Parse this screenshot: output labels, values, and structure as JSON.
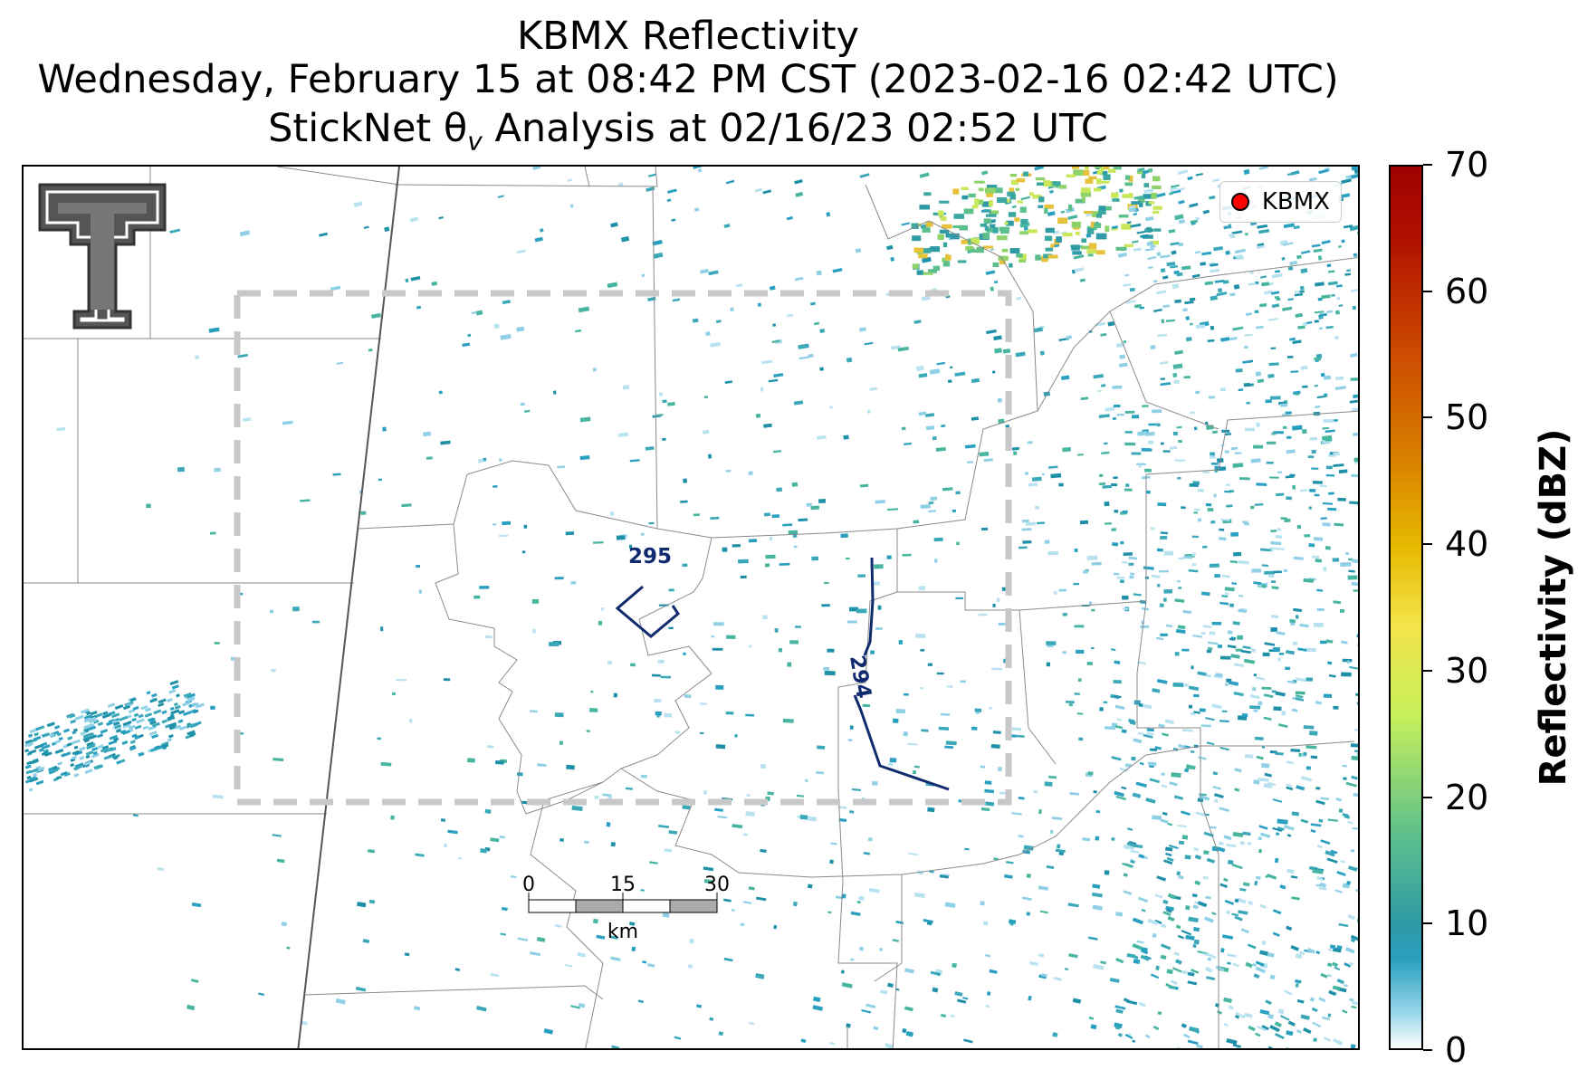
{
  "header": {
    "title_line1": "KBMX Reflectivity",
    "title_line2": "Wednesday, February 15 at 08:42 PM CST (2023-02-16 02:42 UTC)",
    "title_line3_prefix": "StickNet θ",
    "title_line3_subscript": "v",
    "title_line3_suffix": " Analysis at 02/16/23 02:52 UTC"
  },
  "legend": {
    "label": "KBMX",
    "marker_color": "#ff0000"
  },
  "contours": [
    {
      "label": "295",
      "color": "#102a6e"
    },
    {
      "label": "294",
      "color": "#102a6e"
    }
  ],
  "scale_bar": {
    "ticks": [
      "0",
      "15",
      "30"
    ],
    "mid_tick": "15",
    "unit": "km"
  },
  "colorbar": {
    "label": "Reflectivity (dBZ)",
    "ticks": [
      "0",
      "10",
      "20",
      "30",
      "40",
      "50",
      "60",
      "70"
    ],
    "min": 0,
    "max": 70
  },
  "colors": {
    "analysis_box": "#c8c8c8",
    "county_lines": "#8a8a8a",
    "state_line": "#555555",
    "contour": "#102a6e"
  }
}
